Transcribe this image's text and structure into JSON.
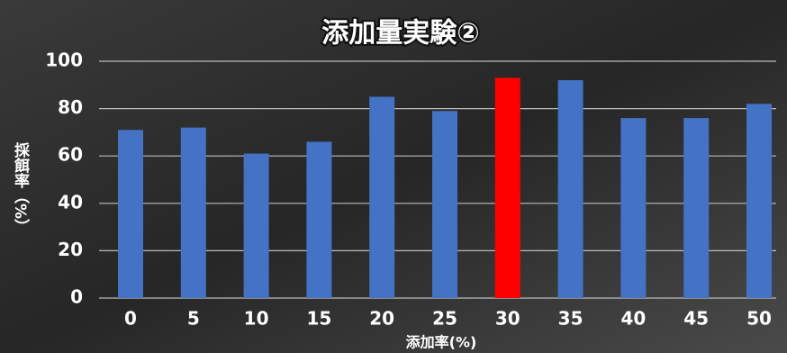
{
  "chart_data": {
    "type": "bar",
    "title": "添加量実験②",
    "x_label": "添加率(%)",
    "y_label": "採餌率（%）",
    "categories": [
      "0",
      "5",
      "10",
      "15",
      "20",
      "25",
      "30",
      "35",
      "40",
      "45",
      "50"
    ],
    "values": [
      71,
      72,
      61,
      66,
      85,
      79,
      93,
      92,
      76,
      76,
      82
    ],
    "colors": [
      "#4472c4",
      "#4472c4",
      "#4472c4",
      "#4472c4",
      "#4472c4",
      "#4472c4",
      "#ff0000",
      "#4472c4",
      "#4472c4",
      "#4472c4",
      "#4472c4"
    ],
    "ylim": [
      0,
      100
    ],
    "yticks": [
      0,
      20,
      40,
      60,
      80,
      100
    ],
    "grid": true
  }
}
